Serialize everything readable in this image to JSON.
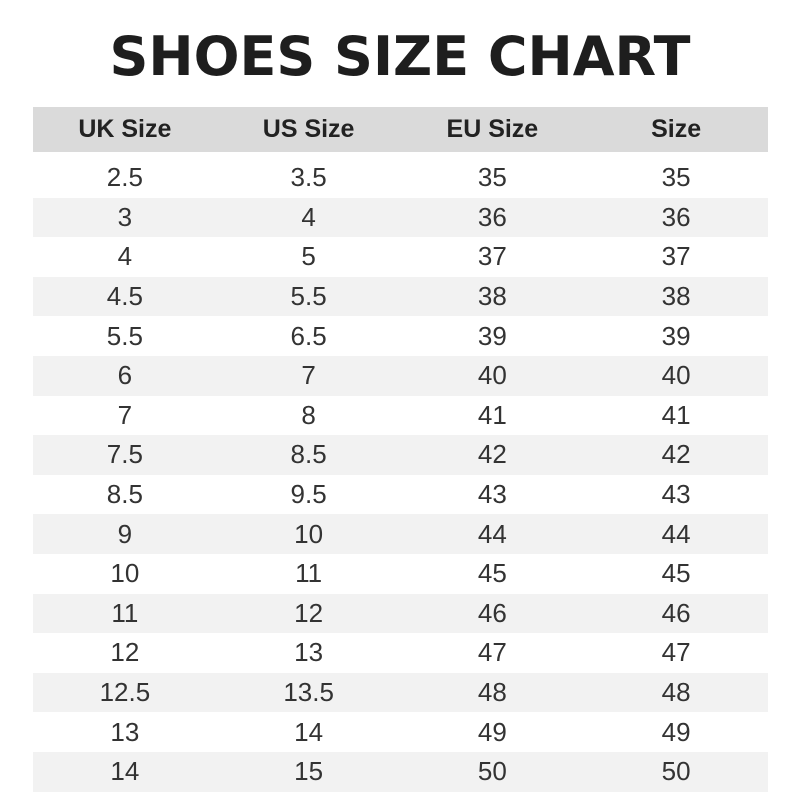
{
  "title": "SHOES SIZE CHART",
  "table": {
    "headers": [
      "UK Size",
      "US Size",
      "EU Size",
      "Size"
    ],
    "rows": [
      [
        "2.5",
        "3.5",
        "35",
        "35"
      ],
      [
        "3",
        "4",
        "36",
        "36"
      ],
      [
        "4",
        "5",
        "37",
        "37"
      ],
      [
        "4.5",
        "5.5",
        "38",
        "38"
      ],
      [
        "5.5",
        "6.5",
        "39",
        "39"
      ],
      [
        "6",
        "7",
        "40",
        "40"
      ],
      [
        "7",
        "8",
        "41",
        "41"
      ],
      [
        "7.5",
        "8.5",
        "42",
        "42"
      ],
      [
        "8.5",
        "9.5",
        "43",
        "43"
      ],
      [
        "9",
        "10",
        "44",
        "44"
      ],
      [
        "10",
        "11",
        "45",
        "45"
      ],
      [
        "11",
        "12",
        "46",
        "46"
      ],
      [
        "12",
        "13",
        "47",
        "47"
      ],
      [
        "12.5",
        "13.5",
        "48",
        "48"
      ],
      [
        "13",
        "14",
        "49",
        "49"
      ],
      [
        "14",
        "15",
        "50",
        "50"
      ]
    ]
  },
  "colors": {
    "header_bg": "#dadada",
    "stripe_bg": "#f2f2f2"
  }
}
